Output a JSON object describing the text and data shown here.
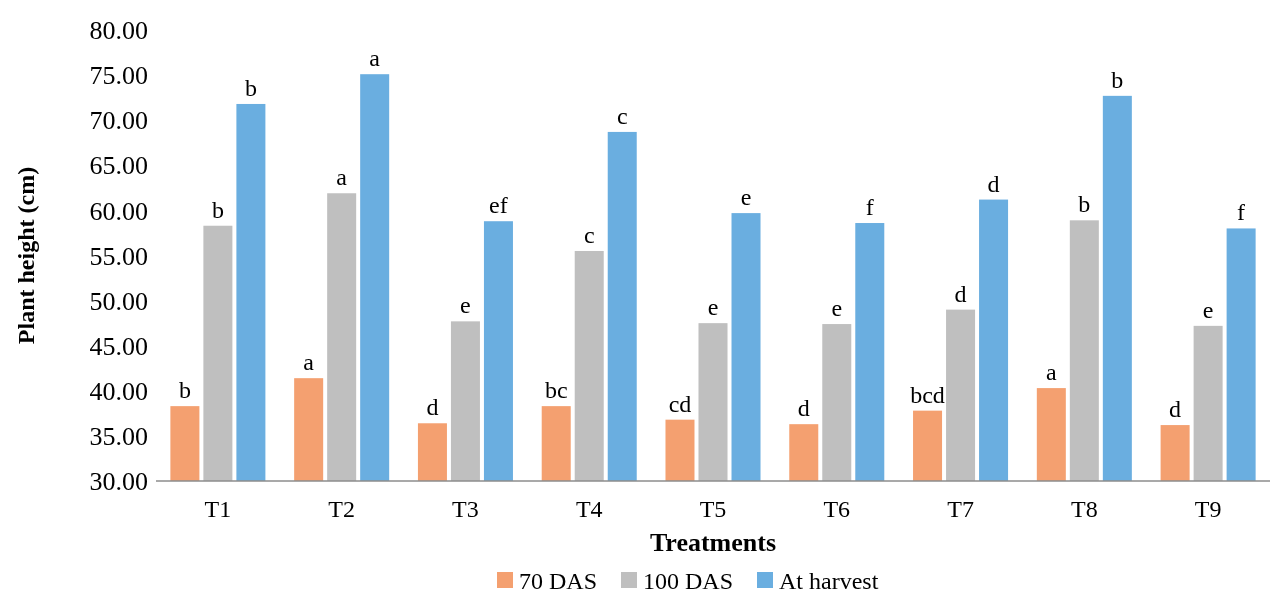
{
  "chart_data": {
    "type": "bar",
    "xlabel": "Treatments",
    "ylabel": "Plant height (cm)",
    "categories": [
      "T1",
      "T2",
      "T3",
      "T4",
      "T5",
      "T6",
      "T7",
      "T8",
      "T9"
    ],
    "series": [
      {
        "name": "70 DAS",
        "color": "#f4a070",
        "values": [
          38.3,
          41.4,
          36.4,
          38.3,
          36.8,
          36.3,
          37.8,
          40.3,
          36.2
        ],
        "value_labels": [
          "b",
          "a",
          "d",
          "bc",
          "cd",
          "d",
          "bcd",
          "a",
          "d"
        ]
      },
      {
        "name": "100 DAS",
        "color": "#bfbfbf",
        "values": [
          58.3,
          61.9,
          47.7,
          55.5,
          47.5,
          47.4,
          49.0,
          58.9,
          47.2
        ],
        "value_labels": [
          "b",
          "a",
          "e",
          "c",
          "e",
          "e",
          "d",
          "b",
          "e"
        ]
      },
      {
        "name": "At harvest",
        "color": "#6aaee0",
        "values": [
          71.8,
          75.1,
          58.8,
          68.7,
          59.7,
          58.6,
          61.2,
          72.7,
          58.0
        ],
        "value_labels": [
          "b",
          "a",
          "ef",
          "c",
          "e",
          "f",
          "d",
          "b",
          "f"
        ]
      }
    ],
    "ylim": [
      30,
      80
    ],
    "yticks": [
      {
        "value": 30,
        "label": "30.00"
      },
      {
        "value": 35,
        "label": "35.00"
      },
      {
        "value": 40,
        "label": "40.00"
      },
      {
        "value": 45,
        "label": "45.00"
      },
      {
        "value": 50,
        "label": "50.00"
      },
      {
        "value": 55,
        "label": "55.00"
      },
      {
        "value": 60,
        "label": "60.00"
      },
      {
        "value": 65,
        "label": "65.00"
      },
      {
        "value": 70,
        "label": "70.00"
      },
      {
        "value": 75,
        "label": "75.00"
      },
      {
        "value": 80,
        "label": "80.00"
      }
    ],
    "grid": false,
    "legend": "bottom"
  }
}
